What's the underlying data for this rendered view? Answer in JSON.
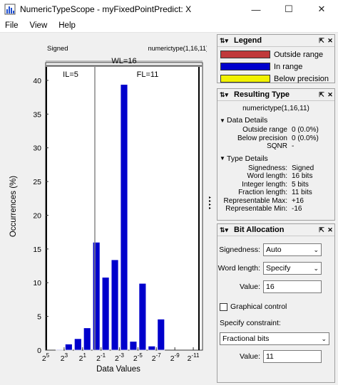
{
  "window": {
    "title": "NumericTypeScope - myFixedPointPredict: X",
    "minimize": "—",
    "maximize": "☐",
    "close": "✕"
  },
  "menu": [
    "File",
    "View",
    "Help"
  ],
  "colors": {
    "in_range": "#0000cc",
    "outside_range": "#c0393b",
    "below_precision": "#f2f200"
  },
  "plot": {
    "signed_label": "Signed",
    "numerictype_label": "numerictype(1,16,11)",
    "wl_label": "WL=16",
    "il_label": "IL=5",
    "fl_label": "FL=11"
  },
  "chart_data": {
    "type": "bar",
    "xlabel": "Data Values",
    "ylabel": "Occurrences (%)",
    "ylim": [
      0,
      42
    ],
    "yticks": [
      0,
      5,
      10,
      15,
      20,
      25,
      30,
      35,
      40
    ],
    "xtick_labels": [
      {
        "base": "2",
        "exp": "5"
      },
      {
        "base": "2",
        "exp": "3"
      },
      {
        "base": "2",
        "exp": "1"
      },
      {
        "base": "2",
        "exp": "-1"
      },
      {
        "base": "2",
        "exp": "-3"
      },
      {
        "base": "2",
        "exp": "-5"
      },
      {
        "base": "2",
        "exp": "-7"
      },
      {
        "base": "2",
        "exp": "-9"
      },
      {
        "base": "2",
        "exp": "-11"
      }
    ],
    "bins_exponent": [
      5,
      4,
      3,
      2,
      1,
      0,
      -1,
      -2,
      -3,
      -4,
      -5,
      -6,
      -7,
      -8,
      -9,
      -10,
      -11
    ],
    "values": [
      0,
      0.1,
      0.9,
      1.7,
      3.3,
      16.0,
      10.8,
      13.4,
      39.4,
      1.3,
      9.9,
      0.6,
      4.6,
      0,
      0,
      0,
      0
    ],
    "series": [
      {
        "name": "In range",
        "color": "#0000cc"
      }
    ]
  },
  "legend": {
    "title": "Legend",
    "items": [
      {
        "label": "Outside range",
        "color": "#c0393b"
      },
      {
        "label": "In range",
        "color": "#0000cc"
      },
      {
        "label": "Below precision",
        "color": "#f2f200"
      }
    ]
  },
  "resulting_type": {
    "title": "Resulting Type",
    "numerictype": "numerictype(1,16,11)",
    "data_details_title": "Data Details",
    "data_details": [
      {
        "k": "Outside range",
        "v": "0 (0.0%)"
      },
      {
        "k": "Below precision",
        "v": "0 (0.0%)"
      },
      {
        "k": "SQNR",
        "v": "-"
      }
    ],
    "type_details_title": "Type Details",
    "type_details": [
      {
        "k": "Signedness:",
        "v": "Signed"
      },
      {
        "k": "Word length:",
        "v": "16 bits"
      },
      {
        "k": "Integer length:",
        "v": "5 bits"
      },
      {
        "k": "Fraction length:",
        "v": "11 bits"
      },
      {
        "k": "Representable Max:",
        "v": "+16"
      },
      {
        "k": "Representable Min:",
        "v": "-16"
      }
    ]
  },
  "bit_allocation": {
    "title": "Bit Allocation",
    "signedness_label": "Signedness:",
    "signedness_value": "Auto",
    "word_length_label": "Word length:",
    "word_length_value": "Specify",
    "value_label": "Value:",
    "value_value": "16",
    "graphical_control_label": "Graphical control",
    "specify_constraint_label": "Specify constraint:",
    "constraint_value": "Fractional bits",
    "value2_label": "Value:",
    "value2_value": "11"
  }
}
